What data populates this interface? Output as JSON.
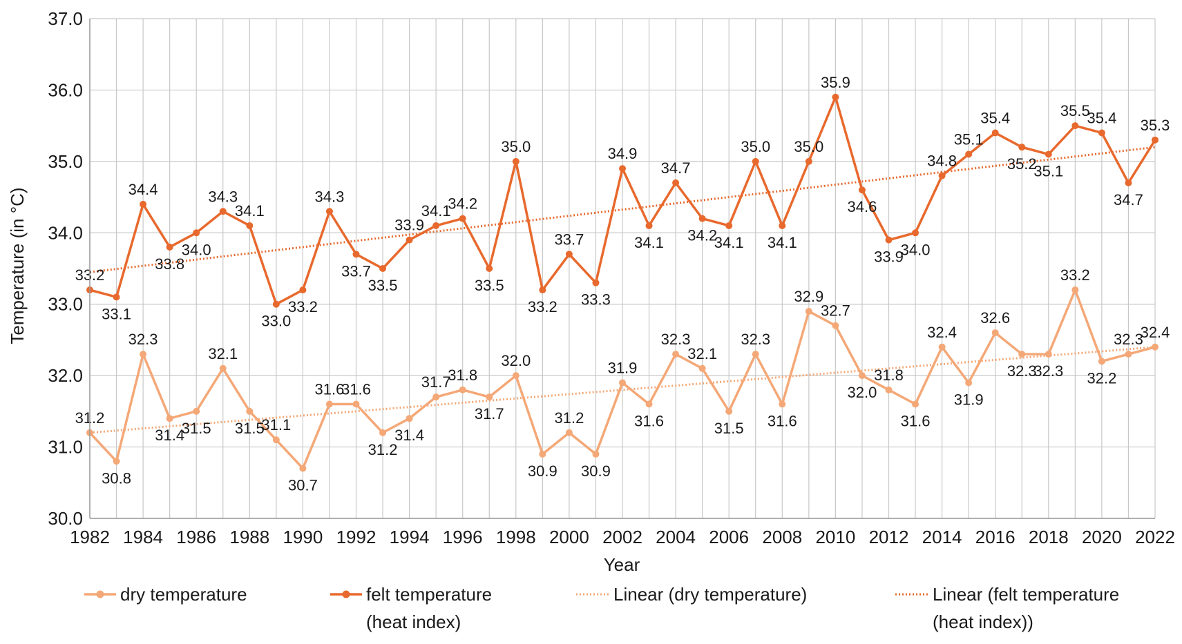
{
  "chart_data": {
    "type": "line",
    "title": "",
    "xlabel": "Year",
    "ylabel": "Temperature (in °C)",
    "ylim": [
      30,
      37
    ],
    "yticks": [
      "30.0",
      "31.0",
      "32.0",
      "33.0",
      "34.0",
      "35.0",
      "36.0",
      "37.0"
    ],
    "xlim": [
      1982,
      2022
    ],
    "xticks": [
      "1982",
      "1984",
      "1986",
      "1988",
      "1990",
      "1992",
      "1994",
      "1996",
      "1998",
      "2000",
      "2002",
      "2004",
      "2006",
      "2008",
      "2010",
      "2012",
      "2014",
      "2016",
      "2018",
      "2020",
      "2022"
    ],
    "grid": true,
    "legend_position": "bottom",
    "x": [
      1982,
      1983,
      1984,
      1985,
      1986,
      1987,
      1988,
      1989,
      1990,
      1991,
      1992,
      1993,
      1994,
      1995,
      1996,
      1997,
      1998,
      1999,
      2000,
      2001,
      2002,
      2003,
      2004,
      2005,
      2006,
      2007,
      2008,
      2009,
      2010,
      2011,
      2012,
      2013,
      2014,
      2015,
      2016,
      2017,
      2018,
      2019,
      2020,
      2021,
      2022
    ],
    "series": [
      {
        "name": "dry temperature",
        "color": "#f4a877",
        "values": [
          31.2,
          30.8,
          32.3,
          31.4,
          31.5,
          32.1,
          31.5,
          31.1,
          30.7,
          31.6,
          31.6,
          31.2,
          31.4,
          31.7,
          31.8,
          31.7,
          32.0,
          30.9,
          31.2,
          30.9,
          31.9,
          31.6,
          32.3,
          32.1,
          31.5,
          32.3,
          31.6,
          32.9,
          32.7,
          32.0,
          31.8,
          31.6,
          32.4,
          31.9,
          32.6,
          32.3,
          32.3,
          33.2,
          32.2,
          32.3,
          32.4
        ],
        "labels": [
          "31.2",
          "30.8",
          "32.3",
          "31.4",
          "31.5",
          "32.1",
          "31.5",
          "31.1",
          "30.7",
          "31.6",
          "31.6",
          "31.2",
          "31.4",
          "31.7",
          "31.8",
          "31.7",
          "32.0",
          "30.9",
          "31.2",
          "30.9",
          "31.9",
          "31.6",
          "32.3",
          "32.1",
          "31.5",
          "32.3",
          "31.6",
          "32.9",
          "32.7",
          "32.0",
          "31.8",
          "31.6",
          "32.4",
          "31.9",
          "32.6",
          "32.3",
          "32.3",
          "33.2",
          "32.2",
          "32.3",
          "32.4"
        ]
      },
      {
        "name": "felt temperature (heat index)",
        "name_line1": "felt temperature",
        "name_line2": "(heat index)",
        "color": "#e8692d",
        "values": [
          33.2,
          33.1,
          34.4,
          33.8,
          34.0,
          34.3,
          34.1,
          33.0,
          33.2,
          34.3,
          33.7,
          33.5,
          33.9,
          34.1,
          34.2,
          33.5,
          35.0,
          33.2,
          33.7,
          33.3,
          34.9,
          34.1,
          34.7,
          34.2,
          34.1,
          35.0,
          34.1,
          35.0,
          35.9,
          34.6,
          33.9,
          34.0,
          34.8,
          35.1,
          35.4,
          35.2,
          35.1,
          35.5,
          35.4,
          34.7,
          35.3
        ],
        "labels": [
          "33.2",
          "33.1",
          "34.4",
          "33.8",
          "34.0",
          "34.3",
          "34.1",
          "33.0",
          "33.2",
          "34.3",
          "33.7",
          "33.5",
          "33.9",
          "34.1",
          "34.2",
          "33.5",
          "35.0",
          "33.2",
          "33.7",
          "33.3",
          "34.9",
          "34.1",
          "34.7",
          "34.2",
          "34.1",
          "35.0",
          "34.1",
          "35.0",
          "35.9",
          "34.6",
          "33.9",
          "34.0",
          "34.8",
          "35.1",
          "35.4",
          "35.2",
          "35.1",
          "35.5",
          "35.4",
          "34.7",
          "35.3"
        ]
      }
    ],
    "trendlines": [
      {
        "name": "Linear (dry temperature)",
        "color": "#f4a877",
        "start": [
          1982,
          31.2
        ],
        "end": [
          2022,
          32.4
        ]
      },
      {
        "name": "Linear (felt temperature (heat index))",
        "name_line1": "Linear (felt temperature",
        "name_line2": "(heat index))",
        "color": "#e8692d",
        "start": [
          1982,
          33.45
        ],
        "end": [
          2022,
          35.2
        ]
      }
    ]
  }
}
